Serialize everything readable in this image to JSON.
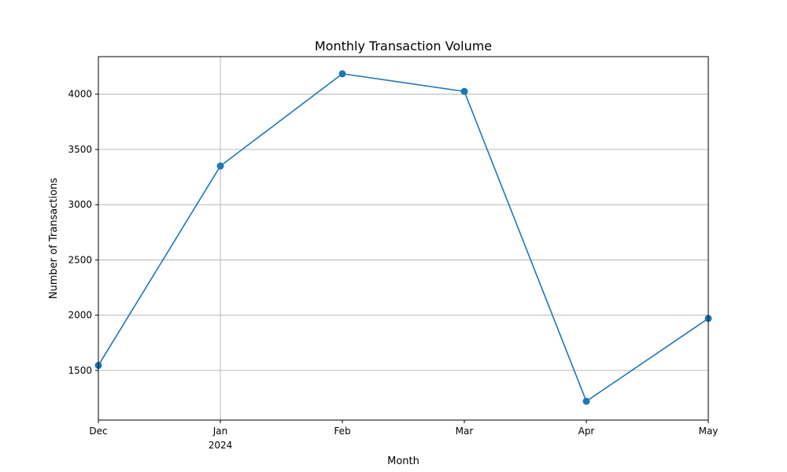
{
  "chart_data": {
    "type": "line",
    "title": "Monthly Transaction Volume",
    "xlabel": "Month",
    "ylabel": "Number of Transactions",
    "x": [
      "Dec",
      "Jan",
      "Feb",
      "Mar",
      "Apr",
      "May"
    ],
    "x_sublabels": [
      "",
      "2024",
      "",
      "",
      "",
      ""
    ],
    "x_gridlines": [
      "Jan"
    ],
    "series": [
      {
        "values": [
          1545,
          3350,
          4185,
          4025,
          1220,
          1970
        ],
        "color": "#1f77b4",
        "marker": "circle"
      }
    ],
    "ylim": [
      1050,
      4340
    ],
    "yticks": [
      1500,
      2000,
      2500,
      3000,
      3500,
      4000
    ],
    "grid": true
  }
}
